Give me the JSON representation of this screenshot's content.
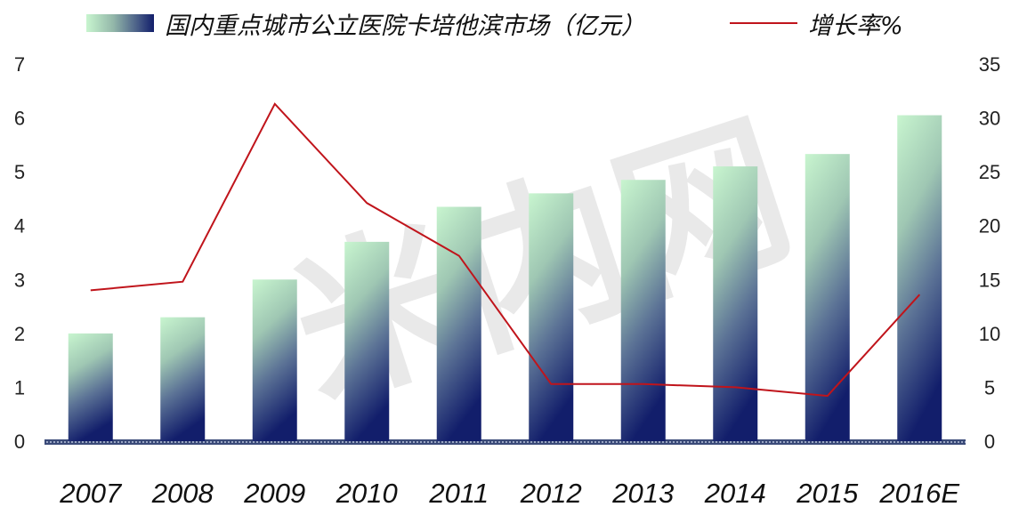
{
  "legend": {
    "bar_label": "国内重点城市公立医院卡培他滨市场（亿元）",
    "line_label": "增长率%"
  },
  "watermark": {
    "text": "米内网",
    "color": "#cfcfcf"
  },
  "chart_data": {
    "type": "bar",
    "categories": [
      "2007",
      "2008",
      "2009",
      "2010",
      "2011",
      "2012",
      "2013",
      "2014",
      "2015",
      "2016E"
    ],
    "series": [
      {
        "name": "国内重点城市公立医院卡培他滨市场（亿元）",
        "type": "bar",
        "axis": "left",
        "values": [
          2.0,
          2.3,
          3.0,
          3.7,
          4.35,
          4.6,
          4.85,
          5.1,
          5.33,
          6.05
        ],
        "color_top": "#c8f5cf",
        "color_bottom": "#121e6b"
      },
      {
        "name": "增长率%",
        "type": "line",
        "axis": "right",
        "values": [
          14.0,
          14.8,
          31.3,
          22.1,
          17.2,
          5.3,
          5.3,
          5.0,
          4.2,
          13.6
        ],
        "color": "#c0141b"
      }
    ],
    "y_left": {
      "ylim": [
        0,
        7
      ],
      "ticks": [
        0,
        1,
        2,
        3,
        4,
        5,
        6,
        7
      ]
    },
    "y_right": {
      "ylim": [
        0,
        35
      ],
      "ticks": [
        0,
        5,
        10,
        15,
        20,
        25,
        30,
        35
      ]
    },
    "grid": false,
    "legend_position": "top"
  }
}
